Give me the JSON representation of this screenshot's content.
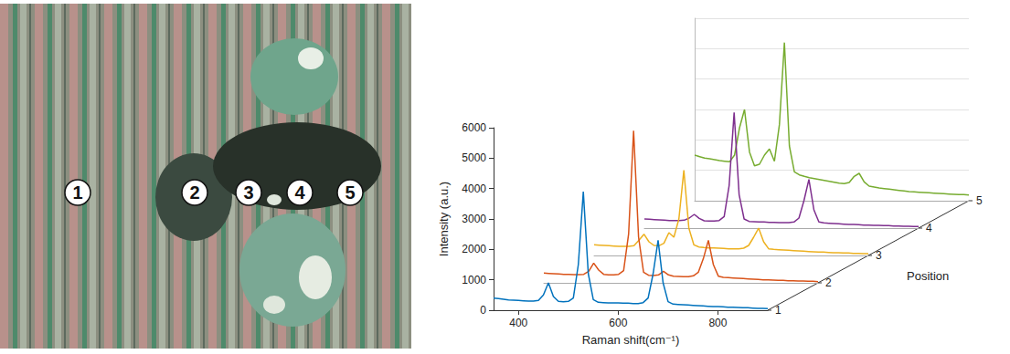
{
  "photo": {
    "markers": [
      "1",
      "2",
      "3",
      "4",
      "5"
    ]
  },
  "chart_data": {
    "type": "line",
    "x_label": "Raman shift(cm⁻¹)",
    "y_label": "Intensity (a.u.)",
    "z_label": "Position",
    "x": [
      350,
      360,
      370,
      380,
      390,
      400,
      410,
      420,
      430,
      440,
      450,
      460,
      470,
      480,
      490,
      500,
      510,
      520,
      530,
      540,
      550,
      560,
      570,
      580,
      590,
      600,
      610,
      620,
      630,
      640,
      650,
      660,
      670,
      680,
      690,
      700,
      710,
      720,
      730,
      740,
      750,
      760,
      770,
      780,
      790,
      800,
      810,
      820,
      830,
      840,
      850,
      860,
      870,
      880,
      890,
      900
    ],
    "xlim": [
      350,
      900
    ],
    "xticks": [
      400,
      600,
      800
    ],
    "ylim": [
      0,
      6000
    ],
    "yticks": [
      0,
      1000,
      2000,
      3000,
      4000,
      5000,
      6000
    ],
    "zlim": [
      1,
      5
    ],
    "zticks": [
      1,
      2,
      3,
      4,
      5
    ],
    "grid": true,
    "series": [
      {
        "position": 1,
        "color": "#0072bd",
        "values": [
          400,
          380,
          360,
          340,
          330,
          320,
          310,
          300,
          300,
          320,
          500,
          900,
          450,
          290,
          280,
          290,
          400,
          1500,
          3900,
          1200,
          350,
          260,
          250,
          240,
          240,
          240,
          230,
          230,
          220,
          220,
          250,
          400,
          1200,
          2300,
          900,
          280,
          200,
          190,
          180,
          170,
          160,
          150,
          140,
          130,
          120,
          120,
          110,
          100,
          100,
          90,
          80,
          80,
          70,
          60,
          60,
          50
        ]
      },
      {
        "position": 2,
        "color": "#d95319",
        "values": [
          320,
          310,
          300,
          290,
          280,
          280,
          270,
          270,
          280,
          380,
          650,
          420,
          280,
          260,
          260,
          280,
          400,
          1600,
          5000,
          1500,
          350,
          250,
          240,
          260,
          380,
          260,
          220,
          210,
          200,
          200,
          230,
          350,
          800,
          1400,
          600,
          220,
          180,
          170,
          160,
          150,
          140,
          130,
          120,
          110,
          100,
          100,
          90,
          80,
          80,
          70,
          70,
          60,
          60,
          50,
          50,
          40
        ]
      },
      {
        "position": 3,
        "color": "#edb120",
        "values": [
          350,
          340,
          330,
          320,
          310,
          300,
          300,
          300,
          320,
          500,
          700,
          450,
          330,
          320,
          400,
          750,
          600,
          1200,
          2800,
          900,
          350,
          280,
          260,
          250,
          250,
          240,
          230,
          220,
          220,
          220,
          240,
          330,
          600,
          900,
          450,
          220,
          200,
          190,
          180,
          170,
          160,
          150,
          140,
          130,
          120,
          110,
          110,
          100,
          90,
          90,
          80,
          80,
          70,
          70,
          60,
          60
        ]
      },
      {
        "position": 4,
        "color": "#7e2f8e",
        "values": [
          300,
          290,
          280,
          270,
          260,
          250,
          250,
          250,
          260,
          330,
          450,
          320,
          240,
          230,
          230,
          250,
          380,
          1400,
          3800,
          1100,
          300,
          220,
          210,
          200,
          200,
          190,
          190,
          180,
          180,
          180,
          200,
          330,
          900,
          1600,
          600,
          200,
          170,
          160,
          150,
          140,
          130,
          120,
          120,
          110,
          100,
          100,
          90,
          90,
          80,
          80,
          70,
          70,
          60,
          60,
          50,
          50
        ]
      },
      {
        "position": 5,
        "color": "#77ac30",
        "values": [
          1500,
          1450,
          1400,
          1380,
          1350,
          1320,
          1300,
          1280,
          1500,
          2400,
          3000,
          1600,
          1150,
          1200,
          1500,
          1700,
          1300,
          2500,
          5200,
          1800,
          950,
          850,
          800,
          760,
          730,
          700,
          670,
          640,
          610,
          580,
          560,
          600,
          800,
          900,
          620,
          480,
          450,
          420,
          400,
          380,
          360,
          340,
          320,
          300,
          290,
          280,
          270,
          260,
          250,
          240,
          230,
          220,
          210,
          200,
          200,
          190
        ]
      }
    ]
  }
}
